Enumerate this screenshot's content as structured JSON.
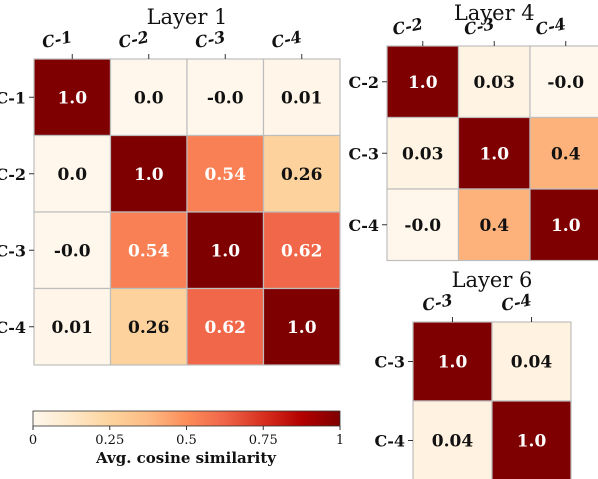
{
  "chart_data": [
    {
      "type": "heatmap",
      "title": "Layer 1",
      "categories": [
        "C-1",
        "C-2",
        "C-3",
        "C-4"
      ],
      "values": [
        [
          1.0,
          0.0,
          -0.0,
          0.01
        ],
        [
          0.0,
          1.0,
          0.54,
          0.26
        ],
        [
          -0.0,
          0.54,
          1.0,
          0.62
        ],
        [
          0.01,
          0.26,
          0.62,
          1.0
        ]
      ],
      "labels": [
        [
          "1.0",
          "0.0",
          "-0.0",
          "0.01"
        ],
        [
          "0.0",
          "1.0",
          "0.54",
          "0.26"
        ],
        [
          "-0.0",
          "0.54",
          "1.0",
          "0.62"
        ],
        [
          "0.01",
          "0.26",
          "0.62",
          "1.0"
        ]
      ]
    },
    {
      "type": "heatmap",
      "title": "Layer 4",
      "categories": [
        "C-2",
        "C-3",
        "C-4"
      ],
      "values": [
        [
          1.0,
          0.03,
          -0.0
        ],
        [
          0.03,
          1.0,
          0.4
        ],
        [
          -0.0,
          0.4,
          1.0
        ]
      ],
      "labels": [
        [
          "1.0",
          "0.03",
          "-0.0"
        ],
        [
          "0.03",
          "1.0",
          "0.4"
        ],
        [
          "-0.0",
          "0.4",
          "1.0"
        ]
      ]
    },
    {
      "type": "heatmap",
      "title": "Layer 6",
      "categories": [
        "C-3",
        "C-4"
      ],
      "values": [
        [
          1.0,
          0.04
        ],
        [
          0.04,
          1.0
        ]
      ],
      "labels": [
        [
          "1.0",
          "0.04"
        ],
        [
          "0.04",
          "1.0"
        ]
      ]
    }
  ],
  "colorbar": {
    "label": "Avg. cosine similarity",
    "range": [
      0,
      1
    ],
    "ticks": [
      "0",
      "0.25",
      "0.5",
      "0.75",
      "1"
    ],
    "colormap": "OrRd",
    "colors": [
      "#fff7ec",
      "#fee8c8",
      "#fdd49e",
      "#fdbb84",
      "#fc8d59",
      "#ef6548",
      "#d7301f",
      "#b30000",
      "#7f0000"
    ]
  }
}
